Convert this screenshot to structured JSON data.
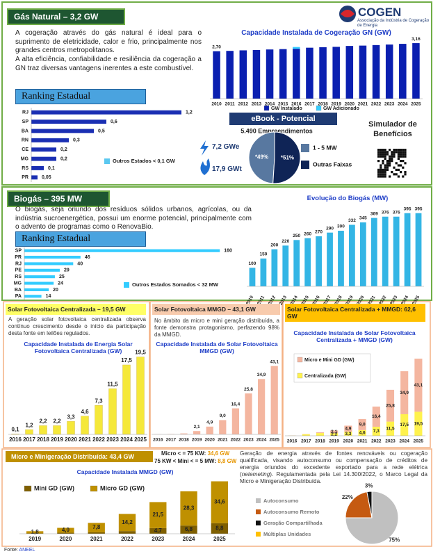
{
  "logo": {
    "name": "COGEN",
    "subtitle": "Associação da Indústria de Cogeração de Energia"
  },
  "gas_natural": {
    "title": "Gás Natural – 3,2 GW",
    "paragraphs": [
      "A cogeração através do gás natural é ideal para o suprimento de eletricidade, calor e frio, principalmente nos grandes centros metropolitanos.",
      "A alta eficiência, confiabilidade e resiliência da cogeração a GN traz diversas vantagens inerentes a este combustível."
    ],
    "ranking_title": "Ranking Estadual",
    "ebook_title": "eBook - Potencial",
    "electric": "7,2 GWe",
    "thermal": "17,9 GWt",
    "simulator": "Simulador de Benefícios"
  },
  "biogas": {
    "title": "Biogás – 395 MW",
    "paragraph": "O biogás, seja oriundo dos resíduos sólidos urbanos, agrícolas, ou da indústria sucroenergética, possui um enorme potencial, principalmente com o advento de programas como o RenovaBio.",
    "ranking_title": "Ranking Estadual"
  },
  "solar": [
    {
      "title": "Solar Fotovoltaica Centralizada – 19,5 GW",
      "paragraph": "A geração solar fotovoltaica centralizada observa contínuo crescimento desde o início da participação desta fonte em leilões regulados."
    },
    {
      "title": "Solar Fotovoltaica MMGD – 43,1 GW",
      "paragraph": "No âmbito da micro e mini geração distribuída, a fonte demonstra protagonismo, perfazendo 98% da MMGD."
    },
    {
      "title": "Solar Fotovoltaica Centralizada + MMGD: 62,6 GW"
    }
  ],
  "mmgd": {
    "title": "Micro e Minigeração Distribuída: 43,4 GW",
    "micro_label": "Micro < = 75 KW:",
    "micro_value": "34,6 GW",
    "mini_label": "75 KW < Mini < = 5 MW:",
    "mini_value": "8,8 GW",
    "paragraph_parts": [
      "Geração de energia através de fontes renováveis ou cogeração qualificada, visando autoconsumo ou compensação de créditos de energia oriundos do excedente exportado para a rede elétrica (",
      "netemeting",
      "). Regulamentada pela Lei 14.300/2022, o Marco Legal da Micro e Minigeração Distribuída."
    ]
  },
  "source": {
    "label": "Fonte:",
    "value": "ANEEL"
  },
  "chart_data": [
    {
      "type": "bar",
      "title": "Capacidade Instalada de Cogeração GN (GW)",
      "categories": [
        "2010",
        "2011",
        "2012",
        "2013",
        "2014",
        "2015",
        "2016",
        "2017",
        "2018",
        "2019",
        "2020",
        "2021",
        "2022",
        "2023",
        "2024",
        "2025"
      ],
      "series": [
        {
          "name": "GW Instalado",
          "color": "#0a1fb0",
          "values": [
            2.7,
            2.72,
            2.75,
            2.77,
            2.8,
            2.82,
            2.84,
            2.9,
            2.93,
            2.95,
            3.0,
            3.02,
            3.05,
            3.08,
            3.12,
            3.16
          ],
          "value_labels": [
            "2,70",
            null,
            null,
            null,
            null,
            null,
            null,
            null,
            null,
            null,
            null,
            null,
            null,
            null,
            null,
            "3,16"
          ]
        },
        {
          "name": "GW Adicionado",
          "color": "#33ccff",
          "values": [
            0,
            0,
            0,
            0,
            0,
            0,
            0.1,
            0,
            0,
            0,
            0,
            0,
            0,
            0,
            0,
            0
          ]
        }
      ],
      "ylim": [
        0,
        3.4
      ]
    },
    {
      "type": "horizontal_bar",
      "categories": [
        "RJ",
        "SP",
        "BA",
        "RN",
        "CE",
        "MG",
        "RS",
        "PR"
      ],
      "values": [
        1.2,
        0.6,
        0.5,
        0.3,
        0.2,
        0.2,
        0.1,
        0.05
      ],
      "value_labels": [
        "1,2",
        "0,6",
        "0,5",
        "0,3",
        "0,2",
        "0,2",
        "0,1",
        "0,05"
      ],
      "color": "#1a2fb3",
      "xlim": [
        0,
        1.25
      ],
      "note": "Outros Estados < 0,1 GW",
      "note_color": "#5bc8f0"
    },
    {
      "type": "pie",
      "title": "5.490 Empreendimentos",
      "categories": [
        "1 - 5 MW",
        "Outras Faixas"
      ],
      "values": [
        49,
        51
      ],
      "value_labels": [
        "*49%",
        "*51%"
      ],
      "colors": [
        "#5878a0",
        "#0f2456"
      ],
      "direction": "counterclockwise"
    },
    {
      "type": "bar",
      "title": "Evolução do Biogás (MW)",
      "categories": [
        "2010",
        "2011",
        "2012",
        "2013",
        "2014",
        "2015",
        "2016",
        "2017",
        "2018",
        "2019",
        "2020",
        "2021",
        "2022",
        "2023",
        "2024",
        "2025"
      ],
      "values": [
        100,
        150,
        200,
        220,
        250,
        260,
        270,
        290,
        300,
        332,
        345,
        369,
        376,
        376,
        395,
        395
      ],
      "color": "#33b5e5",
      "ylim": [
        0,
        420
      ]
    },
    {
      "type": "horizontal_bar",
      "categories": [
        "SP",
        "PR",
        "RJ",
        "PE",
        "RS",
        "MG",
        "BA",
        "PA"
      ],
      "values": [
        160,
        46,
        40,
        29,
        25,
        24,
        20,
        14
      ],
      "color": "#33ccff",
      "xlim": [
        0,
        165
      ],
      "note": "Outros Estados Somados < 32 MW",
      "note_color": "#33ccff"
    },
    {
      "type": "bar",
      "title": "Capacidade Instalada de Energia Solar Fotovoltaica Centralizada (GW)",
      "categories": [
        "2016",
        "2017",
        "2018",
        "2019",
        "2020",
        "2021",
        "2022",
        "2023",
        "2024",
        "2025"
      ],
      "values": [
        0.1,
        1.2,
        2.2,
        2.2,
        3.3,
        4.6,
        7.3,
        11.5,
        17.5,
        19.5
      ],
      "value_labels": [
        "0,1",
        "1,2",
        "2,2",
        "2,2",
        "3,3",
        "4,6",
        "7,3",
        "11,5",
        "17,5",
        "19,5"
      ],
      "color": "#f5e83a",
      "ylim": [
        0,
        21
      ]
    },
    {
      "type": "bar",
      "title": "Capacidade Instalada de Solar Fotovoltaica MMGD (GW)",
      "categories": [
        "2016",
        "2017",
        "2018",
        "2019",
        "2020",
        "2021",
        "2022",
        "2023",
        "2024",
        "2025"
      ],
      "values": [
        0.1,
        0.2,
        0.6,
        2.1,
        4.9,
        9.0,
        16.4,
        25.8,
        34.9,
        43.1
      ],
      "value_labels": [
        null,
        null,
        null,
        "2,1",
        "4,9",
        "9,0",
        "16,4",
        "25,8",
        "34,9",
        "43,1"
      ],
      "color": "#f4b6a0",
      "ylim": [
        0,
        46
      ]
    },
    {
      "type": "bar",
      "title": "Capacidade Instalada de Solar Fotovoltaica Centralizada + MMGD (GW)",
      "categories": [
        "2016",
        "2017",
        "2018",
        "2019",
        "2020",
        "2021",
        "2022",
        "2023",
        "2024",
        "2025"
      ],
      "series": [
        {
          "name": "Centralizada (GW)",
          "color": "#fff24d",
          "values": [
            0.1,
            1.2,
            2.2,
            2.2,
            3.3,
            4.6,
            7.3,
            11.5,
            17.5,
            19.5
          ],
          "value_labels": [
            null,
            null,
            null,
            "2,2",
            "3,3",
            "4,6",
            "7,3",
            "11,5",
            "17,5",
            "19,5"
          ]
        },
        {
          "name": "Micro e Mini GD (GW)",
          "color": "#f4b6a0",
          "values": [
            0.1,
            0.2,
            0.6,
            2.1,
            4.9,
            9.0,
            16.4,
            25.8,
            34.9,
            43.1
          ],
          "value_labels": [
            null,
            null,
            null,
            "2,1",
            "4,9",
            "9,0",
            "16,4",
            "25,8",
            "34,9",
            "43,1"
          ]
        }
      ],
      "ylim": [
        0,
        66
      ]
    },
    {
      "type": "bar",
      "title": "Capacidade Instalada MMGD (GW)",
      "categories": [
        "2019",
        "2020",
        "2021",
        "2022",
        "2023",
        "2024",
        "2025"
      ],
      "series": [
        {
          "name": "Mini GD (GW)",
          "color": "#7f5f00",
          "values": [
            0.3,
            0.9,
            1.2,
            2.2,
            4.7,
            6.8,
            8.8
          ],
          "value_labels": [
            null,
            null,
            null,
            null,
            "4,7",
            "6,8",
            "8,8"
          ]
        },
        {
          "name": "Micro GD (GW)",
          "color": "#bf9000",
          "values": [
            1.8,
            4.0,
            7.8,
            14.2,
            21.5,
            28.3,
            34.6
          ],
          "value_labels": [
            "1,8",
            "4,0",
            "7,8",
            "14,2",
            "21,5",
            "28,3",
            "34,6"
          ]
        }
      ],
      "ylim": [
        0,
        46
      ]
    },
    {
      "type": "pie",
      "categories": [
        "Autoconsumo",
        "Autoconsumo Remoto",
        "Geração Compartilhada",
        "Múltiplas Unidades"
      ],
      "values": [
        75,
        22,
        3,
        0
      ],
      "value_labels": [
        "75%",
        "22%",
        "3%",
        null
      ],
      "colors": [
        "#c0c0c0",
        "#c55a11",
        "#111111",
        "#ffc000"
      ],
      "direction": "clockwise"
    }
  ]
}
